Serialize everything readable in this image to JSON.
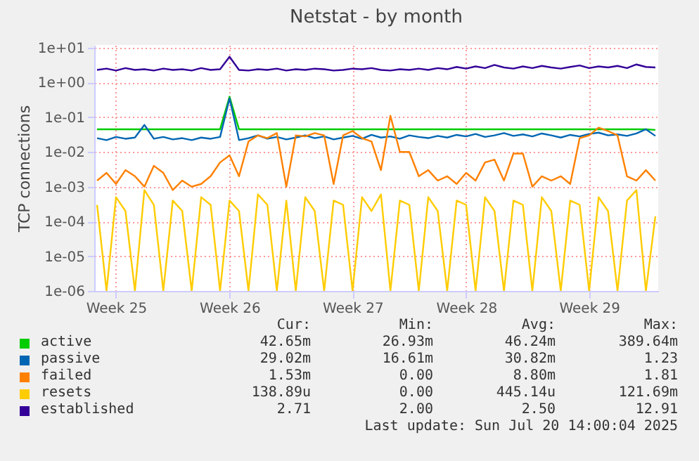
{
  "chart_data": {
    "type": "line",
    "title": "Netstat - by month",
    "ylabel": "TCP connections",
    "log": "y",
    "grid": true,
    "legend": "bottom",
    "marker": "none",
    "line_style": "solid",
    "ylim": [
      1e-06,
      12
    ],
    "yticks": [
      {
        "value": 1e-06,
        "label": "1e-06"
      },
      {
        "value": 1e-05,
        "label": "1e-05"
      },
      {
        "value": 0.0001,
        "label": "1e-04"
      },
      {
        "value": 0.001,
        "label": "1e-03"
      },
      {
        "value": 0.01,
        "label": "1e-02"
      },
      {
        "value": 0.1,
        "label": "1e-01"
      },
      {
        "value": 1,
        "label": "1e+00"
      },
      {
        "value": 10,
        "label": "1e+01"
      }
    ],
    "categories": [
      null,
      null,
      "Week 25",
      null,
      null,
      null,
      null,
      null,
      null,
      null,
      null,
      null,
      null,
      null,
      "Week 26",
      null,
      null,
      null,
      null,
      null,
      null,
      null,
      null,
      null,
      null,
      null,
      null,
      "Week 27",
      null,
      null,
      null,
      null,
      null,
      null,
      null,
      null,
      null,
      null,
      null,
      "Week 28",
      null,
      null,
      null,
      null,
      null,
      null,
      null,
      null,
      null,
      null,
      null,
      null,
      "Week 29",
      null,
      null,
      null,
      null,
      null,
      null,
      null
    ],
    "series": [
      {
        "name": "active",
        "color": "#00cc00",
        "values": [
          0.045,
          0.045,
          0.045,
          0.045,
          0.045,
          0.045,
          0.045,
          0.045,
          0.045,
          0.045,
          0.045,
          0.045,
          0.045,
          0.045,
          0.39,
          0.045,
          0.045,
          0.045,
          0.045,
          0.045,
          0.045,
          0.045,
          0.045,
          0.045,
          0.045,
          0.045,
          0.045,
          0.045,
          0.045,
          0.045,
          0.045,
          0.045,
          0.045,
          0.045,
          0.045,
          0.045,
          0.045,
          0.045,
          0.045,
          0.045,
          0.045,
          0.045,
          0.045,
          0.045,
          0.045,
          0.045,
          0.045,
          0.045,
          0.045,
          0.045,
          0.045,
          0.045,
          0.045,
          0.045,
          0.045,
          0.045,
          0.045,
          0.045,
          0.045,
          0.043
        ]
      },
      {
        "name": "passive",
        "color": "#0066b3",
        "values": [
          0.025,
          0.022,
          0.027,
          0.024,
          0.026,
          0.06,
          0.024,
          0.027,
          0.023,
          0.025,
          0.022,
          0.026,
          0.024,
          0.027,
          0.35,
          0.022,
          0.025,
          0.03,
          0.024,
          0.027,
          0.023,
          0.026,
          0.03,
          0.025,
          0.028,
          0.023,
          0.026,
          0.029,
          0.024,
          0.031,
          0.026,
          0.028,
          0.024,
          0.03,
          0.027,
          0.025,
          0.029,
          0.026,
          0.031,
          0.028,
          0.033,
          0.027,
          0.03,
          0.035,
          0.029,
          0.032,
          0.028,
          0.034,
          0.03,
          0.026,
          0.031,
          0.028,
          0.033,
          0.036,
          0.03,
          0.032,
          0.029,
          0.034,
          0.045,
          0.029
        ]
      },
      {
        "name": "failed",
        "color": "#ff8000",
        "values": [
          0.0015,
          0.0025,
          0.0012,
          0.003,
          0.002,
          0.001,
          0.004,
          0.0025,
          0.0008,
          0.0015,
          0.001,
          0.0012,
          0.002,
          0.005,
          0.008,
          0.002,
          0.02,
          0.03,
          0.025,
          0.035,
          0.001,
          0.03,
          0.028,
          0.035,
          0.03,
          0.0012,
          0.03,
          0.04,
          0.025,
          0.02,
          0.003,
          0.11,
          0.01,
          0.01,
          0.002,
          0.003,
          0.0015,
          0.002,
          0.0012,
          0.0025,
          0.0015,
          0.005,
          0.006,
          0.0015,
          0.009,
          0.009,
          0.001,
          0.002,
          0.0015,
          0.002,
          0.0012,
          0.025,
          0.03,
          0.05,
          0.04,
          0.03,
          0.002,
          0.0015,
          0.003,
          0.0015
        ]
      },
      {
        "name": "resets",
        "color": "#ffcc00",
        "values": [
          0.0003,
          1e-06,
          0.0005,
          0.0002,
          1e-06,
          0.0008,
          0.0003,
          1e-06,
          0.0004,
          0.0002,
          1e-06,
          0.0005,
          0.0003,
          1e-06,
          0.0004,
          0.0002,
          1e-06,
          0.0006,
          0.0003,
          1e-06,
          0.0004,
          1e-06,
          0.0005,
          0.0002,
          1e-06,
          0.0004,
          0.0003,
          1e-06,
          0.0005,
          0.0002,
          0.0006,
          1e-06,
          0.0004,
          0.0003,
          1e-06,
          0.0005,
          0.0002,
          1e-06,
          0.0004,
          0.0003,
          1e-06,
          0.0005,
          0.0002,
          1e-06,
          0.0004,
          0.0003,
          1e-06,
          0.0005,
          0.0002,
          1e-06,
          0.0004,
          0.0003,
          1e-06,
          0.0005,
          0.0002,
          1e-06,
          0.0004,
          0.0008,
          1e-06,
          0.00014
        ]
      },
      {
        "name": "established",
        "color": "#330099",
        "values": [
          2.3,
          2.5,
          2.2,
          2.6,
          2.3,
          2.4,
          2.2,
          2.5,
          2.3,
          2.4,
          2.2,
          2.6,
          2.3,
          2.4,
          5.5,
          2.3,
          2.2,
          2.4,
          2.3,
          2.5,
          2.2,
          2.4,
          2.3,
          2.5,
          2.4,
          2.2,
          2.3,
          2.5,
          2.4,
          2.6,
          2.3,
          2.2,
          2.4,
          2.3,
          2.5,
          2.3,
          2.6,
          2.4,
          2.8,
          2.5,
          2.9,
          2.6,
          3.2,
          2.7,
          2.5,
          2.9,
          2.6,
          3.0,
          2.7,
          2.5,
          2.8,
          3.1,
          2.6,
          2.9,
          2.7,
          3.0,
          2.6,
          3.3,
          2.8,
          2.71
        ]
      }
    ],
    "annotations": [
      "Cur:",
      "Min:",
      "Avg:",
      "Max:",
      "42.65m",
      "26.93m",
      "46.24m",
      "389.64m",
      "29.02m",
      "16.61m",
      "30.82m",
      "1.23",
      "1.53m",
      "0.00",
      "8.80m",
      "1.81",
      "138.89u",
      "0.00",
      "445.14u",
      "121.69m",
      "2.71",
      "2.00",
      "2.50",
      "12.91",
      "Last update: Sun Jul 20 14:00:04 2025"
    ]
  }
}
